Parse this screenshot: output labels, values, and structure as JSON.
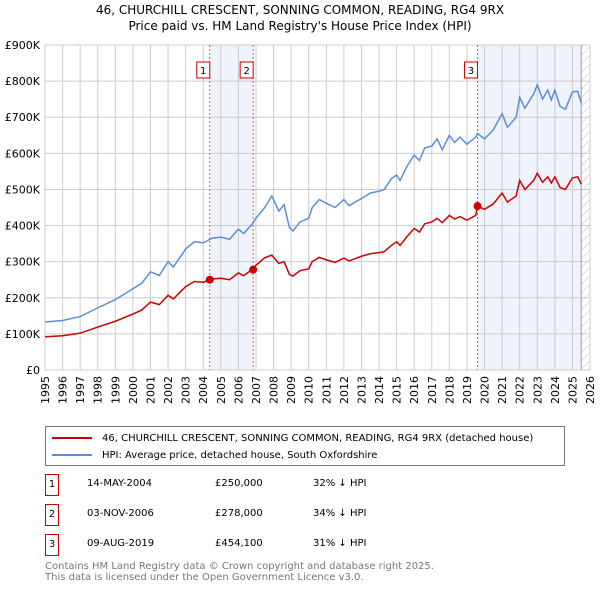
{
  "title_line1": "46, CHURCHILL CRESCENT, SONNING COMMON, READING, RG4 9RX",
  "title_line2": "Price paid vs. HM Land Registry's House Price Index (HPI)",
  "chart_data": {
    "type": "line",
    "xlim": [
      1995,
      2026
    ],
    "ylim": [
      0,
      900000
    ],
    "yticks": [
      0,
      100000,
      200000,
      300000,
      400000,
      500000,
      600000,
      700000,
      800000,
      900000
    ],
    "ytick_labels": [
      "£0",
      "£100K",
      "£200K",
      "£300K",
      "£400K",
      "£500K",
      "£600K",
      "£700K",
      "£800K",
      "£900K"
    ],
    "xticks": [
      1995,
      1996,
      1997,
      1998,
      1999,
      2000,
      2001,
      2002,
      2003,
      2004,
      2005,
      2006,
      2007,
      2008,
      2009,
      2010,
      2011,
      2012,
      2013,
      2014,
      2015,
      2016,
      2017,
      2018,
      2019,
      2020,
      2021,
      2022,
      2023,
      2024,
      2025,
      2026
    ],
    "grid": true,
    "shaded_ranges": [
      [
        2004.37,
        2006.84
      ],
      [
        2019.6,
        2025.5
      ]
    ],
    "hatched_from": 2025.5,
    "x": [
      1995,
      1996,
      1997,
      1998,
      1999,
      2000,
      2000.5,
      2001,
      2001.5,
      2002,
      2002.3,
      2003,
      2003.5,
      2004,
      2004.5,
      2005,
      2005.5,
      2006,
      2006.3,
      2006.8,
      2007,
      2007.5,
      2007.9,
      2008.3,
      2008.6,
      2008.9,
      2009.1,
      2009.5,
      2010,
      2010.2,
      2010.6,
      2011,
      2011.5,
      2012,
      2012.3,
      2013,
      2013.5,
      2014,
      2014.3,
      2014.7,
      2015,
      2015.2,
      2015.6,
      2016,
      2016.3,
      2016.6,
      2017,
      2017.3,
      2017.6,
      2018,
      2018.3,
      2018.6,
      2019,
      2019.5,
      2019.6,
      2020,
      2020.5,
      2021,
      2021.3,
      2021.8,
      2022,
      2022.3,
      2022.8,
      2023,
      2023.3,
      2023.6,
      2023.8,
      2024,
      2024.3,
      2024.6,
      2025,
      2025.3,
      2025.5
    ],
    "series": [
      {
        "name": "46, CHURCHILL CRESCENT, SONNING COMMON, READING, RG4 9RX (detached house)",
        "color": "#cc0000",
        "values": [
          92000,
          95000,
          102000,
          119000,
          135000,
          155000,
          166000,
          188000,
          181000,
          207000,
          197000,
          231000,
          245000,
          243000,
          252000,
          254000,
          250000,
          269000,
          261000,
          279000,
          290000,
          311000,
          318000,
          295000,
          300000,
          265000,
          260000,
          275000,
          280000,
          300000,
          312000,
          305000,
          298000,
          310000,
          302000,
          315000,
          322000,
          325000,
          328000,
          345000,
          355000,
          345000,
          370000,
          392000,
          382000,
          405000,
          410000,
          420000,
          408000,
          428000,
          418000,
          425000,
          415000,
          428000,
          454000,
          445000,
          460000,
          490000,
          465000,
          482000,
          525000,
          500000,
          525000,
          545000,
          520000,
          535000,
          518000,
          535000,
          505000,
          500000,
          532000,
          535000,
          515000
        ]
      },
      {
        "name": "HPI: Average price, detached house, South Oxfordshire",
        "color": "#5b8fd4",
        "values": [
          133000,
          137000,
          148000,
          172000,
          195000,
          225000,
          240000,
          272000,
          262000,
          300000,
          285000,
          335000,
          355000,
          352000,
          365000,
          368000,
          362000,
          390000,
          378000,
          405000,
          420000,
          450000,
          482000,
          440000,
          458000,
          395000,
          385000,
          410000,
          420000,
          450000,
          472000,
          462000,
          450000,
          472000,
          455000,
          475000,
          490000,
          495000,
          500000,
          530000,
          540000,
          525000,
          565000,
          595000,
          580000,
          615000,
          620000,
          640000,
          610000,
          650000,
          630000,
          645000,
          625000,
          645000,
          655000,
          640000,
          665000,
          710000,
          672000,
          700000,
          755000,
          725000,
          765000,
          790000,
          750000,
          775000,
          748000,
          775000,
          730000,
          722000,
          770000,
          772000,
          740000
        ]
      }
    ],
    "sales": [
      {
        "label": "1",
        "x": 2004.37,
        "date": "14-MAY-2004",
        "price_value": 250000,
        "price": "£250,000",
        "hpi_diff": "32% ↓ HPI"
      },
      {
        "label": "2",
        "x": 2006.84,
        "date": "03-NOV-2006",
        "price_value": 278000,
        "price": "£278,000",
        "hpi_diff": "34% ↓ HPI"
      },
      {
        "label": "3",
        "x": 2019.6,
        "date": "09-AUG-2019",
        "price_value": 454100,
        "price": "£454,100",
        "hpi_diff": "31% ↓ HPI"
      }
    ]
  },
  "legend": {
    "property": "46, CHURCHILL CRESCENT, SONNING COMMON, READING, RG4 9RX (detached house)",
    "hpi": "HPI: Average price, detached house, South Oxfordshire"
  },
  "footer": {
    "line1": "Contains HM Land Registry data © Crown copyright and database right 2025.",
    "line2": "This data is licensed under the Open Government Licence v3.0."
  }
}
